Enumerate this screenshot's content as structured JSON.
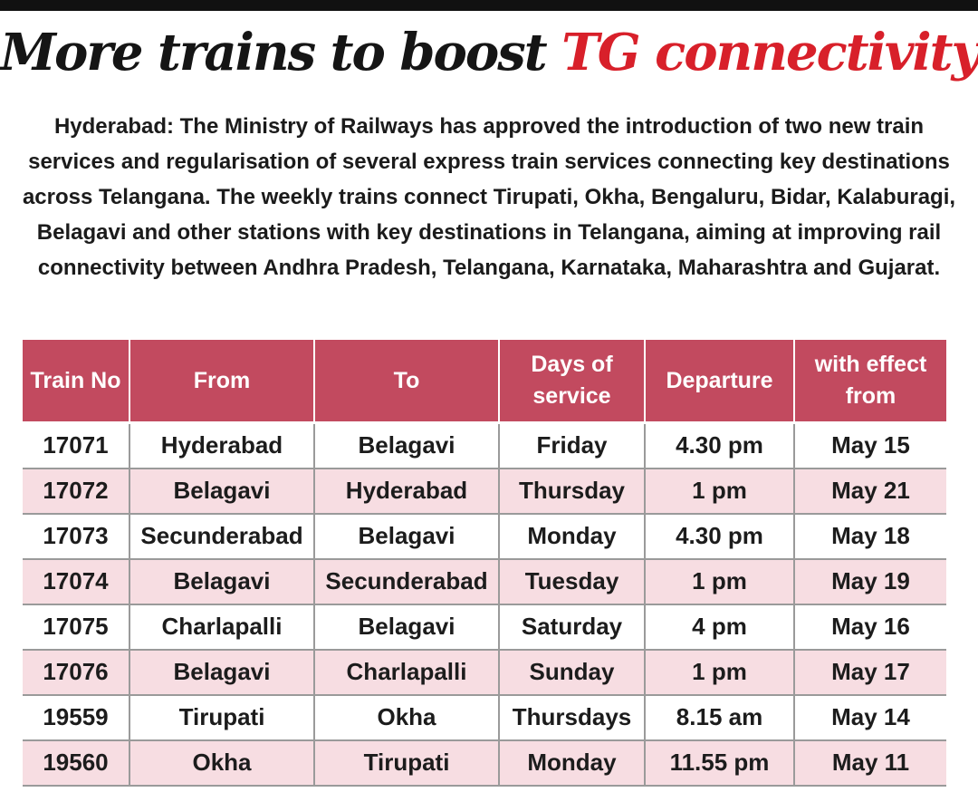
{
  "headline": {
    "part_black": "More trains to boost ",
    "part_red": "TG connectivity"
  },
  "body_text": "Hyderabad: The Ministry of Railways has approved the introduction of two new train services and regularisation of several express train services connecting key destinations across Telangana. The weekly trains connect Tirupati, Okha, Bengaluru, Bidar, Kalaburagi, Belagavi and other stations with key destinations in Telangana, aiming at improving rail connectivity between Andhra Pradesh, Telangana, Karnataka, Maharashtra and Gujarat.",
  "table": {
    "headers": [
      "Train No",
      "From",
      "To",
      "Days of service",
      "Departure",
      "with effect from"
    ],
    "rows": [
      [
        "17071",
        "Hyderabad",
        "Belagavi",
        "Friday",
        "4.30 pm",
        "May 15"
      ],
      [
        "17072",
        "Belagavi",
        "Hyderabad",
        "Thursday",
        "1 pm",
        "May 21"
      ],
      [
        "17073",
        "Secunderabad",
        "Belagavi",
        "Monday",
        "4.30 pm",
        "May 18"
      ],
      [
        "17074",
        "Belagavi",
        "Secunderabad",
        "Tuesday",
        "1 pm",
        "May 19"
      ],
      [
        "17075",
        "Charlapalli",
        "Belagavi",
        "Saturday",
        "4 pm",
        "May 16"
      ],
      [
        "17076",
        "Belagavi",
        "Charlapalli",
        "Sunday",
        "1 pm",
        "May 17"
      ],
      [
        "19559",
        "Tirupati",
        "Okha",
        "Thursdays",
        "8.15 am",
        "May 14"
      ],
      [
        "19560",
        "Okha",
        "Tirupati",
        "Monday",
        "11.55 pm",
        "May 11"
      ]
    ]
  },
  "colors": {
    "headline_red": "#d8202a",
    "header_bg": "#c24a5f",
    "row_alt_bg": "#f7dde2"
  }
}
